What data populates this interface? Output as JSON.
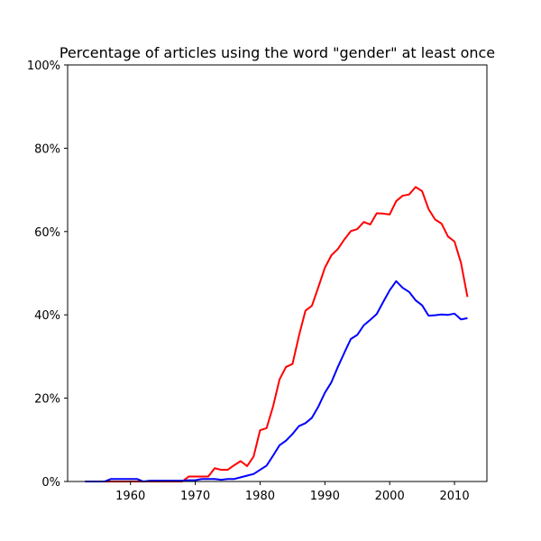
{
  "chart_data": {
    "type": "line",
    "title": "Percentage of articles using the word \"gender\" at least once",
    "xlabel": "",
    "ylabel": "",
    "xlim": [
      1950.3,
      2015
    ],
    "ylim": [
      0,
      100
    ],
    "x_ticks": [
      1960,
      1970,
      1980,
      1990,
      2000,
      2010
    ],
    "y_ticks": [
      0,
      20,
      40,
      60,
      80,
      100
    ],
    "y_tick_labels": [
      "0%",
      "20%",
      "40%",
      "60%",
      "80%",
      "100%"
    ],
    "grid": false,
    "legend": "none",
    "x": [
      1953,
      1954,
      1955,
      1956,
      1957,
      1958,
      1959,
      1960,
      1961,
      1962,
      1963,
      1964,
      1965,
      1966,
      1967,
      1968,
      1969,
      1970,
      1971,
      1972,
      1973,
      1974,
      1975,
      1976,
      1977,
      1978,
      1979,
      1980,
      1981,
      1982,
      1983,
      1984,
      1985,
      1986,
      1987,
      1988,
      1989,
      1990,
      1991,
      1992,
      1993,
      1994,
      1995,
      1996,
      1997,
      1998,
      1999,
      2000,
      2001,
      2002,
      2003,
      2004,
      2005,
      2006,
      2007,
      2008,
      2009,
      2010,
      2011,
      2012
    ],
    "series": [
      {
        "color": "#ff0000",
        "values": [
          0,
          0,
          0,
          0,
          0,
          0,
          0,
          0,
          0,
          0,
          0,
          0,
          0,
          0,
          0,
          0,
          1.2,
          1.2,
          1.2,
          1.2,
          3.2,
          2.8,
          2.8,
          3.9,
          4.9,
          3.7,
          6,
          12.3,
          12.8,
          18,
          24.5,
          27.5,
          28.2,
          35,
          41,
          42.2,
          46.7,
          51.3,
          54.3,
          55.8,
          58.1,
          60.1,
          60.6,
          62.3,
          61.7,
          64.4,
          64.3,
          64.1,
          67.3,
          68.6,
          68.9,
          70.7,
          69.7,
          65.4,
          62.9,
          61.9,
          58.8,
          57.6,
          52.5,
          44.3
        ]
      },
      {
        "color": "#0000ff",
        "values": [
          0,
          0,
          0,
          0,
          0.6,
          0.6,
          0.6,
          0.6,
          0.6,
          0,
          0.2,
          0.2,
          0.2,
          0.2,
          0.2,
          0.2,
          0.3,
          0.3,
          0.6,
          0.6,
          0.6,
          0.4,
          0.6,
          0.6,
          1,
          1.4,
          1.8,
          2.8,
          3.8,
          6.2,
          8.7,
          9.8,
          11.4,
          13.3,
          14,
          15.3,
          18,
          21.3,
          23.8,
          27.5,
          30.9,
          34.2,
          35.2,
          37.5,
          38.8,
          40.2,
          43.1,
          45.9,
          48.1,
          46.5,
          45.5,
          43.5,
          42.3,
          39.8,
          39.9,
          40.1,
          40,
          40.3,
          38.9,
          39.2
        ]
      }
    ]
  }
}
